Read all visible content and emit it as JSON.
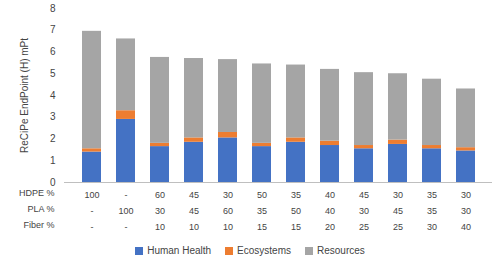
{
  "chart_data": {
    "type": "bar",
    "stacked": true,
    "y_label": "ReCiPe EndPoint (H) mPt",
    "category_rows": [
      "HDPE %",
      "PLA %",
      "Fiber %"
    ],
    "categories": [
      [
        "100",
        "-",
        "-"
      ],
      [
        "-",
        "100",
        "-"
      ],
      [
        "60",
        "30",
        "10"
      ],
      [
        "45",
        "45",
        "10"
      ],
      [
        "30",
        "60",
        "10"
      ],
      [
        "50",
        "35",
        "15"
      ],
      [
        "35",
        "50",
        "15"
      ],
      [
        "40",
        "40",
        "20"
      ],
      [
        "45",
        "30",
        "25"
      ],
      [
        "30",
        "45",
        "25"
      ],
      [
        "35",
        "35",
        "30"
      ],
      [
        "30",
        "30",
        "40"
      ]
    ],
    "series": [
      {
        "name": "Human Health",
        "color": "#4472c4",
        "values": [
          1.4,
          2.9,
          1.65,
          1.85,
          2.05,
          1.65,
          1.85,
          1.7,
          1.55,
          1.75,
          1.55,
          1.45
        ]
      },
      {
        "name": "Ecosystems",
        "color": "#ed7d31",
        "values": [
          0.15,
          0.4,
          0.15,
          0.2,
          0.25,
          0.15,
          0.2,
          0.2,
          0.15,
          0.2,
          0.15,
          0.15
        ]
      },
      {
        "name": "Resources",
        "color": "#a5a5a5",
        "values": [
          5.4,
          3.3,
          3.95,
          3.65,
          3.35,
          3.65,
          3.35,
          3.3,
          3.35,
          3.05,
          3.05,
          2.7
        ]
      }
    ],
    "ylim": [
      0,
      8
    ],
    "yticks": [
      0,
      1,
      2,
      3,
      4,
      5,
      6,
      7,
      8
    ],
    "grid": false,
    "legend": "bottom"
  }
}
